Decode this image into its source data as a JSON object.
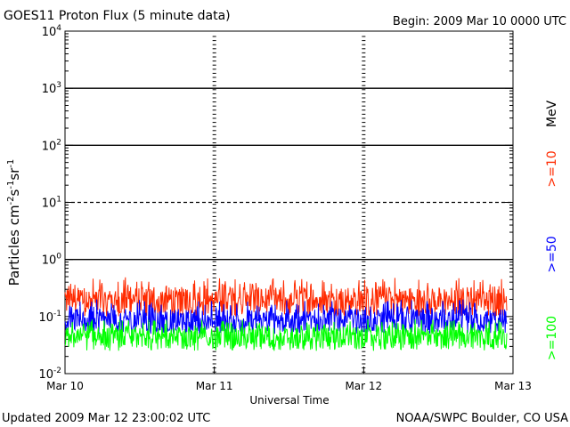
{
  "chart_data": {
    "type": "line",
    "title": "GOES11 Proton Flux (5 minute data)",
    "begin_label": "Begin: 2009 Mar 10 0000 UTC",
    "xlabel": "Universal Time",
    "ylabel": {
      "base": "Particles cm",
      "parts": [
        {
          "text": "Particles cm",
          "sup": false
        },
        {
          "text": "-2",
          "sup": true
        },
        {
          "text": "s",
          "sup": false
        },
        {
          "text": "-1",
          "sup": true
        },
        {
          "text": "sr",
          "sup": false
        },
        {
          "text": "-1",
          "sup": true
        }
      ]
    },
    "y_scale": "log",
    "ylim": [
      0.01,
      10000
    ],
    "yticks": [
      {
        "base": "10",
        "exp": "4",
        "value": 10000
      },
      {
        "base": "10",
        "exp": "3",
        "value": 1000
      },
      {
        "base": "10",
        "exp": "2",
        "value": 100
      },
      {
        "base": "10",
        "exp": "1",
        "value": 10
      },
      {
        "base": "10",
        "exp": "0",
        "value": 1
      },
      {
        "base": "10",
        "exp": "-1",
        "value": 0.1
      },
      {
        "base": "10",
        "exp": "-2",
        "value": 0.01
      }
    ],
    "xticks": [
      "Mar 10",
      "Mar 11",
      "Mar 12",
      "Mar 13"
    ],
    "x_range_days": [
      0,
      3
    ],
    "data_end_day": 2.958,
    "threshold_lines": [
      {
        "value": 1000,
        "style": "solid"
      },
      {
        "value": 100,
        "style": "solid"
      },
      {
        "value": 10,
        "style": "dashed"
      },
      {
        "value": 1,
        "style": "solid"
      }
    ],
    "unit_label": "MeV",
    "series": [
      {
        "name": ">=10",
        "color": "#ff2a00",
        "typical": 0.2,
        "range": [
          0.1,
          0.5
        ]
      },
      {
        "name": ">=50",
        "color": "#0000ff",
        "typical": 0.085,
        "range": [
          0.05,
          0.2
        ]
      },
      {
        "name": ">=100",
        "color": "#00ff00",
        "typical": 0.045,
        "range": [
          0.025,
          0.09
        ]
      }
    ]
  },
  "footer": {
    "updated": "Updated 2009 Mar 12 23:00:02 UTC",
    "credit": "NOAA/SWPC Boulder, CO USA"
  }
}
